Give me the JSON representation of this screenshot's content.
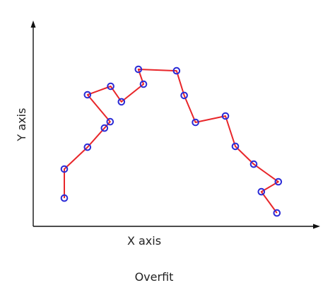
{
  "xlabel": "X axis",
  "ylabel": "Y axis",
  "caption": "Overfit",
  "colors": {
    "axis": "#111111",
    "curve": "#e8262a",
    "marker": "#2b2bd6",
    "text": "#222222"
  },
  "chart_data": {
    "type": "line",
    "title": "",
    "xlabel": "X axis",
    "ylabel": "Y axis",
    "xlim": [
      0,
      100
    ],
    "ylim": [
      0,
      100
    ],
    "grid": false,
    "legend": "none",
    "series": [
      {
        "marker": "open-circle",
        "points": [
          {
            "x": 11.0,
            "y": 13.3
          },
          {
            "x": 11.0,
            "y": 27.0
          },
          {
            "x": 19.2,
            "y": 37.3
          },
          {
            "x": 25.2,
            "y": 46.3
          },
          {
            "x": 27.2,
            "y": 49.3
          },
          {
            "x": 19.2,
            "y": 62.0
          },
          {
            "x": 27.4,
            "y": 66.0
          },
          {
            "x": 31.2,
            "y": 58.7
          },
          {
            "x": 39.0,
            "y": 67.0
          },
          {
            "x": 37.2,
            "y": 74.0
          },
          {
            "x": 50.7,
            "y": 73.3
          },
          {
            "x": 53.4,
            "y": 61.7
          },
          {
            "x": 57.4,
            "y": 49.0
          },
          {
            "x": 68.0,
            "y": 52.0
          },
          {
            "x": 71.5,
            "y": 37.7
          },
          {
            "x": 78.0,
            "y": 29.3
          },
          {
            "x": 86.7,
            "y": 21.0
          },
          {
            "x": 80.7,
            "y": 16.3
          },
          {
            "x": 86.2,
            "y": 6.3
          }
        ]
      }
    ]
  }
}
